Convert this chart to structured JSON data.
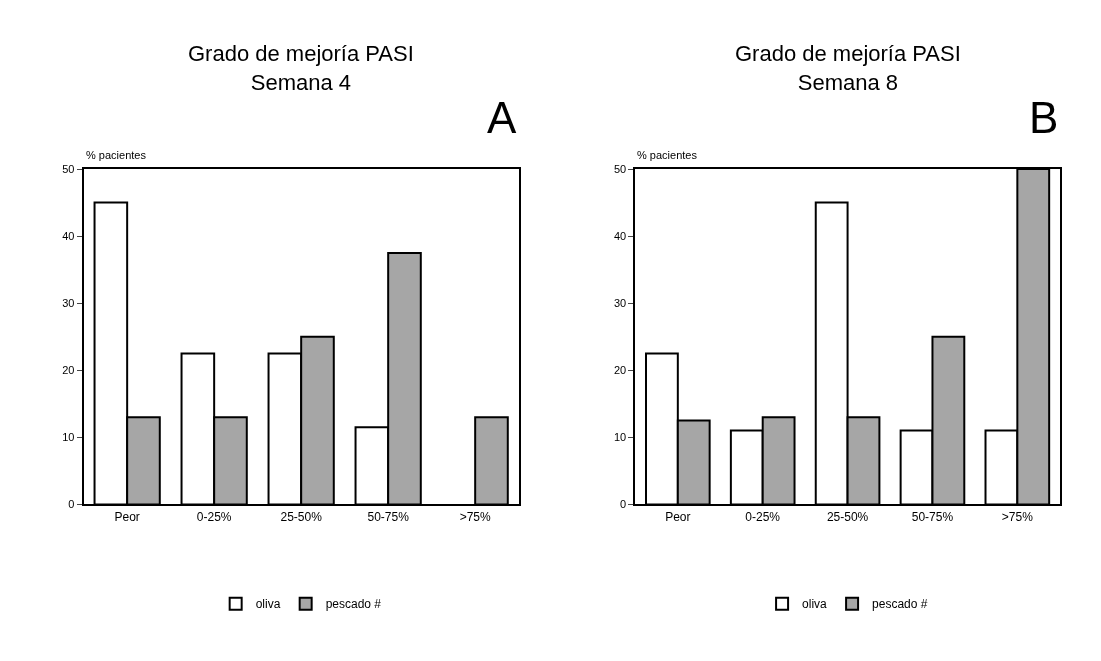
{
  "chart_data": [
    {
      "type": "bar",
      "title": "Grado de mejoría PASI\nSemana 4",
      "ylabel": "% pacientes",
      "annotations": [
        "A"
      ],
      "categories": [
        "Peor",
        "0-25%",
        "25-50%",
        "50-75%",
        ">75%"
      ],
      "series": [
        {
          "name": "oliva",
          "color": "#ffffff",
          "values": [
            45,
            22.5,
            22.5,
            11.5,
            0
          ]
        },
        {
          "name": "pescado #",
          "color": "#a6a6a6",
          "values": [
            13,
            13,
            25,
            37.5,
            13
          ]
        }
      ],
      "ylim": [
        0,
        50
      ],
      "yticks": [
        0,
        10,
        20,
        30,
        40,
        50
      ],
      "grid": false,
      "legend": "bottom"
    },
    {
      "type": "bar",
      "title": "Grado de mejoría PASI\nSemana 8",
      "ylabel": "% pacientes",
      "annotations": [
        "B"
      ],
      "categories": [
        "Peor",
        "0-25%",
        "25-50%",
        "50-75%",
        ">75%"
      ],
      "series": [
        {
          "name": "oliva",
          "color": "#ffffff",
          "values": [
            22.5,
            11,
            45,
            11,
            11
          ]
        },
        {
          "name": "pescado #",
          "color": "#a6a6a6",
          "values": [
            12.5,
            13,
            13,
            25,
            50
          ]
        }
      ],
      "ylim": [
        0,
        50
      ],
      "yticks": [
        0,
        10,
        20,
        30,
        40,
        50
      ],
      "grid": false,
      "legend": "bottom"
    }
  ]
}
